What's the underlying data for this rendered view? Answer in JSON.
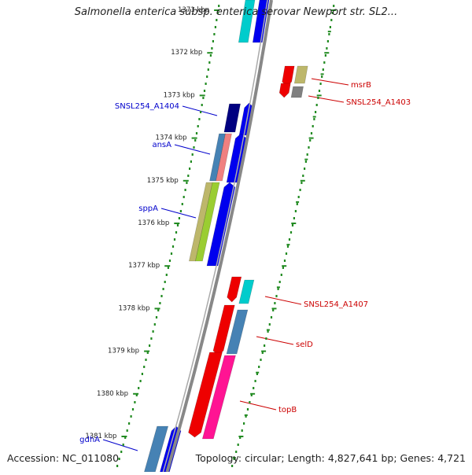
{
  "title": "Salmonella enterica subsp. enterica serovar Newport str. SL2...",
  "accession": "Accession: NC_011080",
  "topology": "Topology: circular; Length: 4,827,641 bp; Genes: 4,721",
  "ticks": [
    {
      "label": "1371 kbp",
      "pos": 1371
    },
    {
      "label": "1372 kbp",
      "pos": 1372
    },
    {
      "label": "1373 kbp",
      "pos": 1373
    },
    {
      "label": "1374 kbp",
      "pos": 1374
    },
    {
      "label": "1375 kbp",
      "pos": 1375
    },
    {
      "label": "1376 kbp",
      "pos": 1376
    },
    {
      "label": "1377 kbp",
      "pos": 1377
    },
    {
      "label": "1378 kbp",
      "pos": 1378
    },
    {
      "label": "1379 kbp",
      "pos": 1379
    },
    {
      "label": "1380 kbp",
      "pos": 1380
    },
    {
      "label": "1381 kbp",
      "pos": 1381
    }
  ],
  "left_labels": [
    {
      "text": "SNSL254_A1404",
      "color": "#0000cc"
    },
    {
      "text": "ansA",
      "color": "#0000cc"
    },
    {
      "text": "sppA",
      "color": "#0000cc"
    },
    {
      "text": "gdhA",
      "color": "#0000cc"
    }
  ],
  "right_labels": [
    {
      "text": "msrB",
      "color": "#cc0000"
    },
    {
      "text": "SNSL254_A1403",
      "color": "#cc0000"
    },
    {
      "text": "SNSL254_A1407",
      "color": "#cc0000"
    },
    {
      "text": "selD",
      "color": "#cc0000"
    },
    {
      "text": "topB",
      "color": "#cc0000"
    }
  ],
  "colors": {
    "backbone": "#888888",
    "tick": "#228b22",
    "forward": "#0000ee",
    "reverse": "#ee0000",
    "cyan": "#00cccc",
    "steelblue": "#4682b4",
    "navy": "#000080",
    "khaki": "#bdb76b",
    "pink": "#ff1493",
    "salmon": "#f08080",
    "lime": "#9acd32",
    "gray": "#808080"
  }
}
